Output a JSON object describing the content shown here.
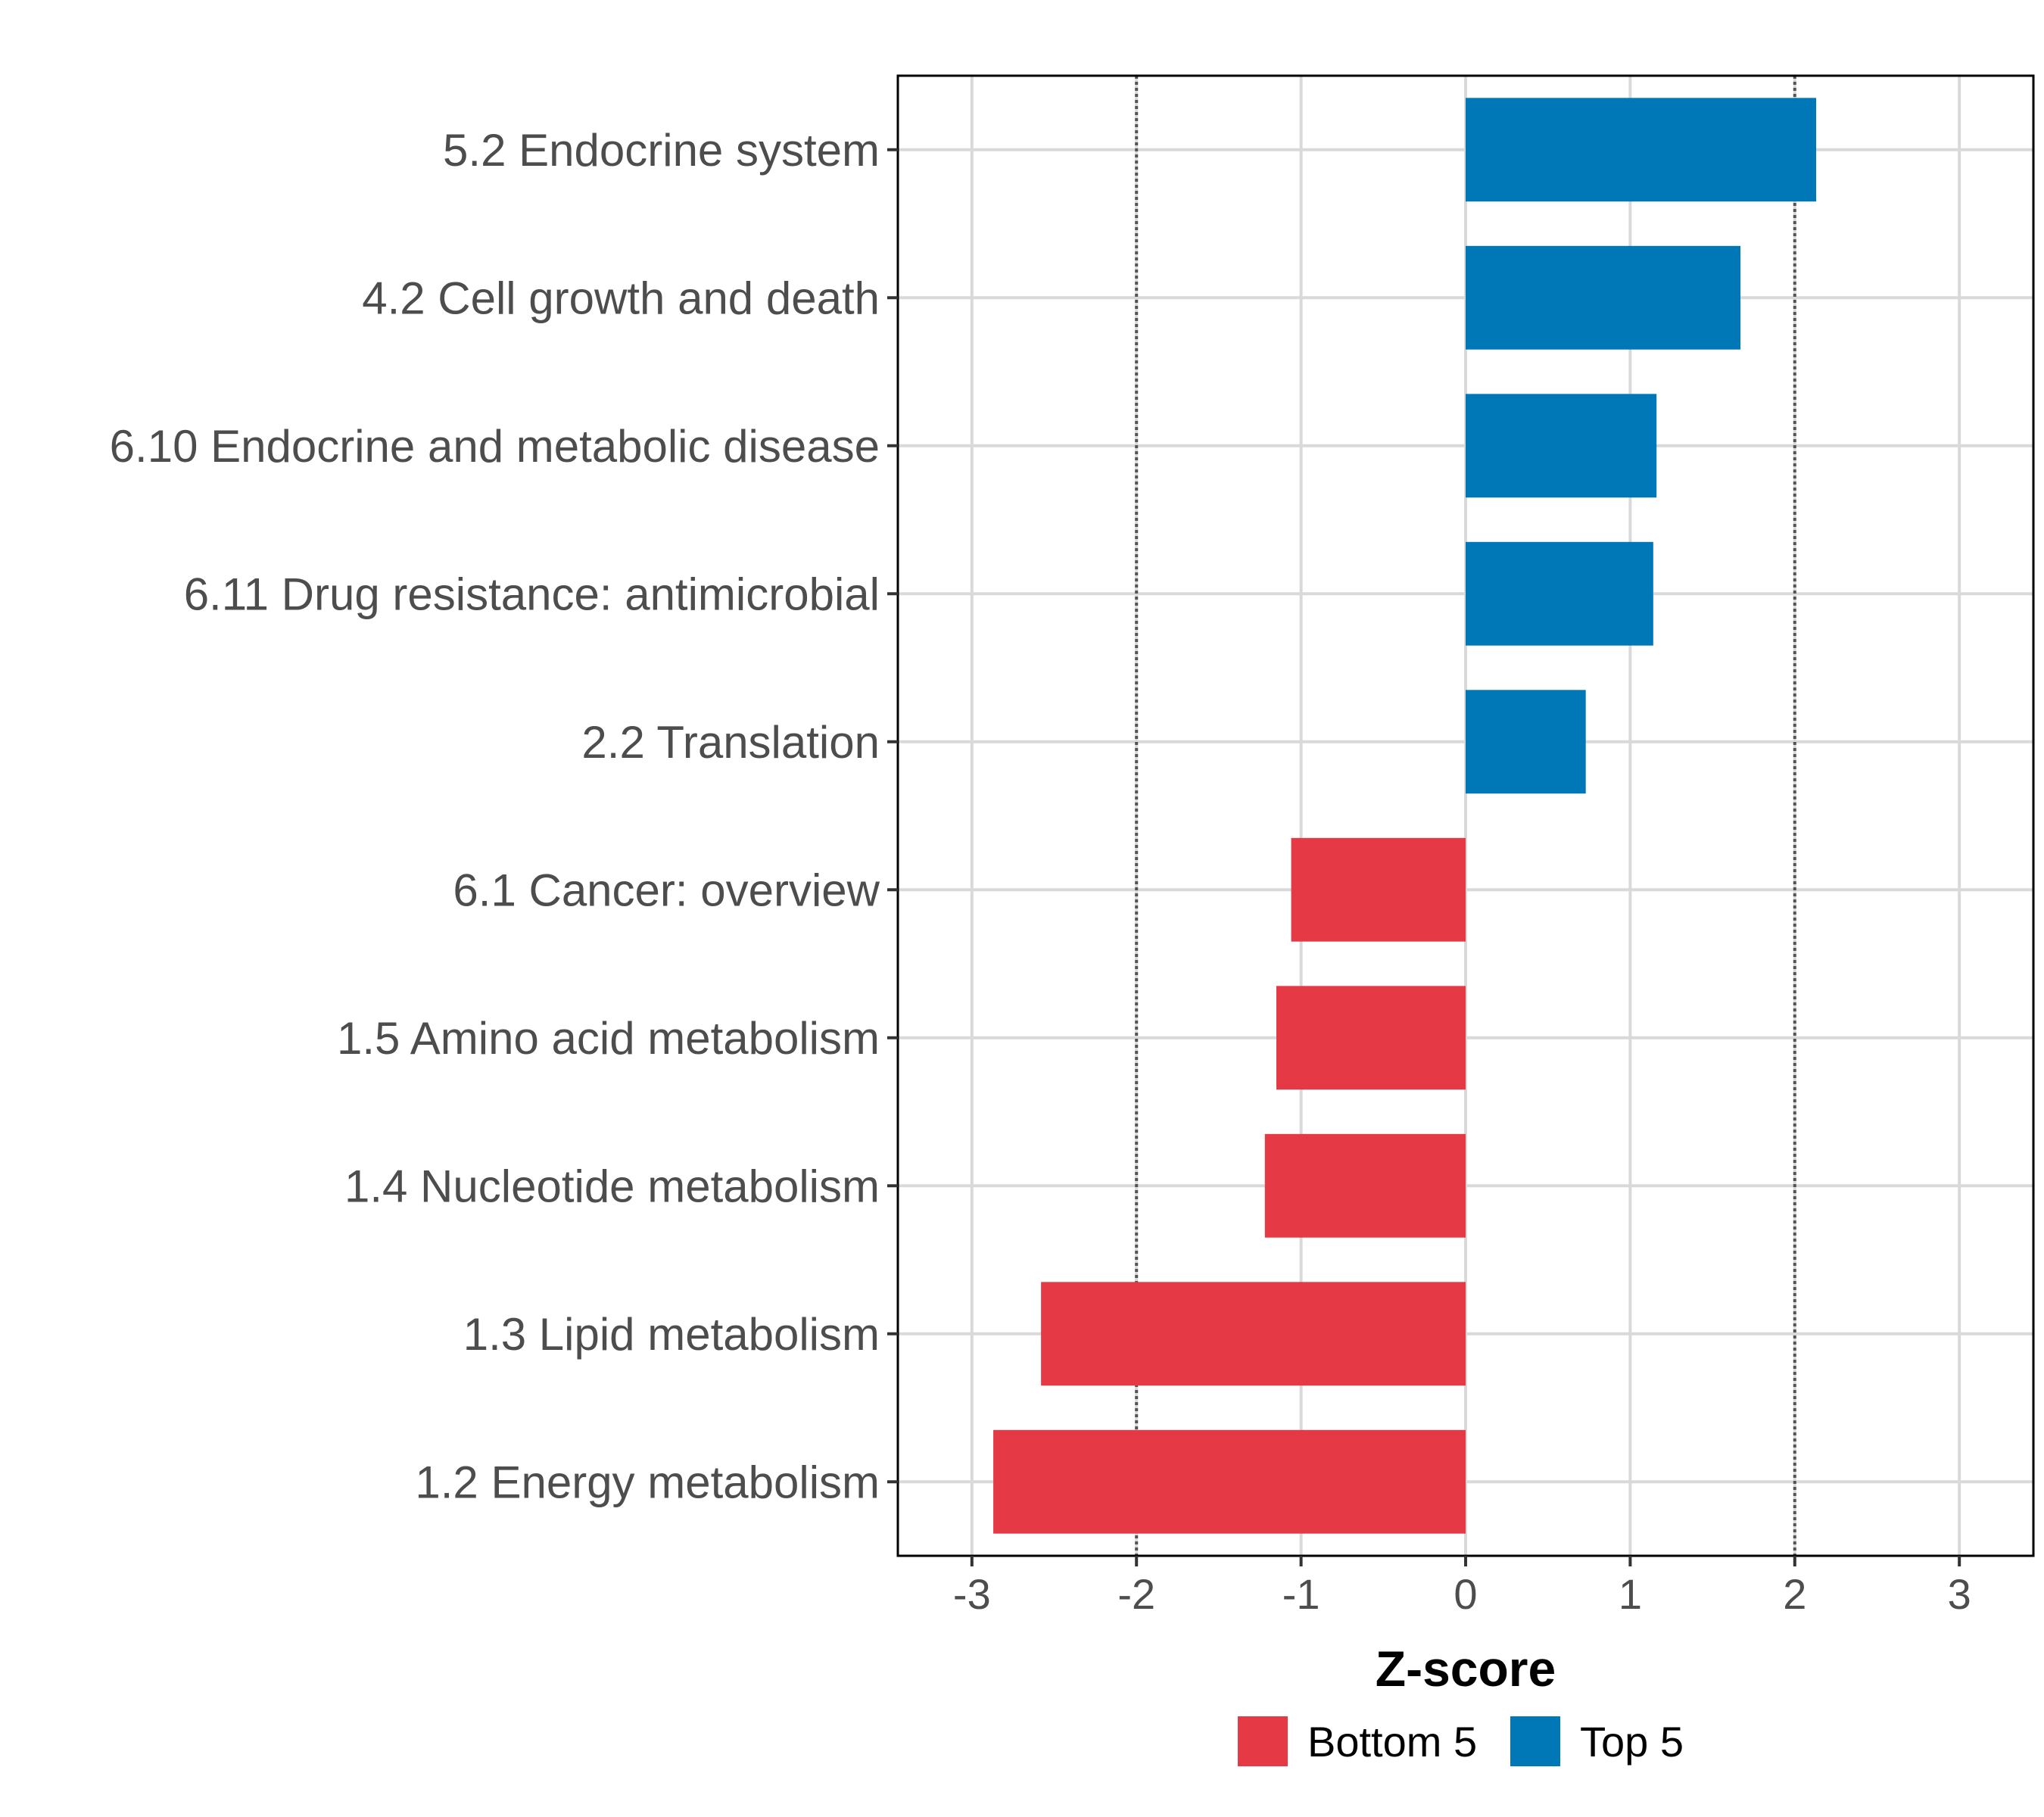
{
  "chart_data": {
    "type": "bar",
    "orientation": "horizontal",
    "categories": [
      "5.2 Endocrine system",
      "4.2 Cell growth and death",
      "6.10 Endocrine and metabolic disease",
      "6.11 Drug resistance: antimicrobial",
      "2.2 Translation",
      "6.1 Cancer: overview",
      "1.5 Amino acid metabolism",
      "1.4 Nucleotide metabolism",
      "1.3 Lipid metabolism",
      "1.2 Energy metabolism"
    ],
    "values": [
      2.13,
      1.67,
      1.16,
      1.14,
      0.73,
      -1.06,
      -1.15,
      -1.22,
      -2.58,
      -2.87
    ],
    "groups": [
      "Top 5",
      "Top 5",
      "Top 5",
      "Top 5",
      "Top 5",
      "Bottom 5",
      "Bottom 5",
      "Bottom 5",
      "Bottom 5",
      "Bottom 5"
    ],
    "xlabel": "Z-score",
    "ylabel": "",
    "xlim": [
      -3.45,
      3.45
    ],
    "xticks": [
      -3,
      -2,
      -1,
      0,
      1,
      2,
      3
    ],
    "xtick_labels": [
      "-3",
      "-2",
      "-1",
      "0",
      "1",
      "2",
      "3"
    ],
    "reference_lines": [
      -2,
      2
    ],
    "grid": true,
    "legend": {
      "position": "bottom",
      "entries": [
        {
          "label": "Bottom 5",
          "color": "#e63946"
        },
        {
          "label": "Top 5",
          "color": "#0077b6"
        }
      ]
    }
  },
  "colors": {
    "bottom": "#e63946",
    "top": "#0077b6",
    "grid": "#d9d9d9",
    "reference": "#555555",
    "frame": "#000000"
  }
}
